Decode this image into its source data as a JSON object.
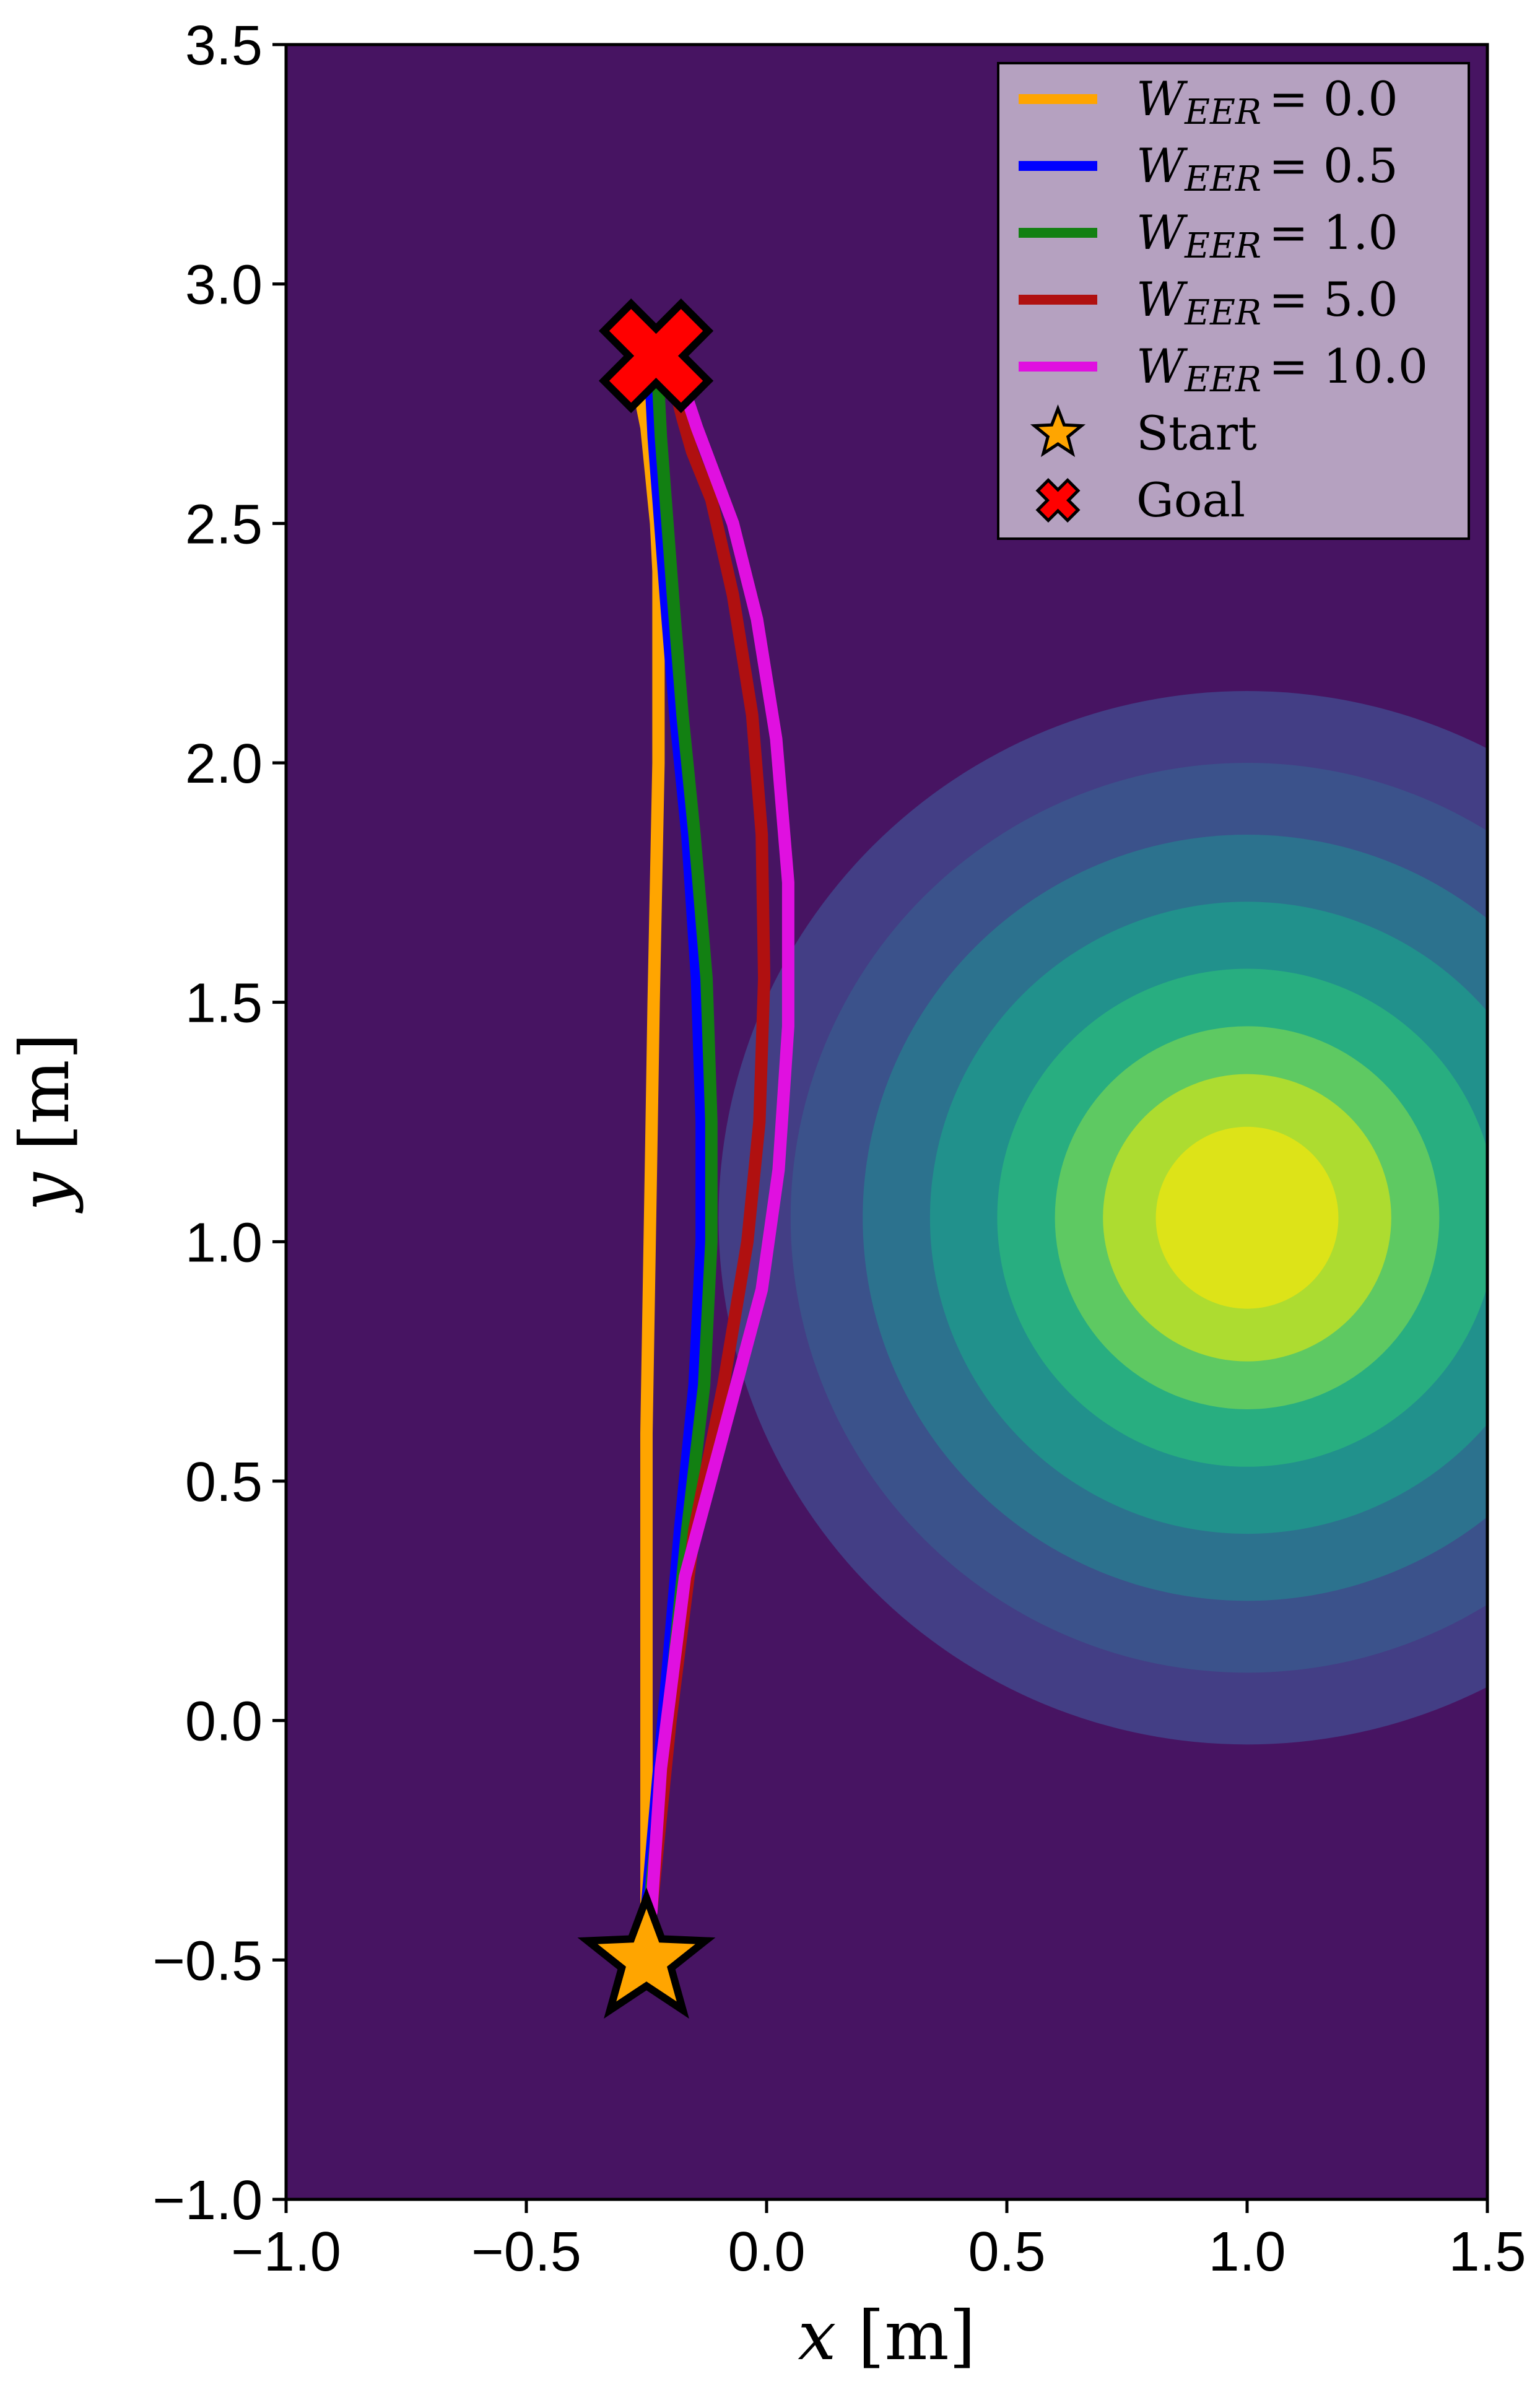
{
  "chart_data": {
    "type": "line",
    "xlabel": {
      "var": "x",
      "unit": "[m]"
    },
    "ylabel": {
      "var": "y",
      "unit": "[m]"
    },
    "xlim": [
      -1.0,
      1.5
    ],
    "ylim": [
      -1.0,
      3.5
    ],
    "xticks": [
      -1.0,
      -0.5,
      0.0,
      0.5,
      1.0,
      1.5
    ],
    "xtick_labels": [
      "−1.0",
      "−0.5",
      "0.0",
      "0.5",
      "1.0",
      "1.5"
    ],
    "yticks": [
      -1.0,
      -0.5,
      0.0,
      0.5,
      1.0,
      1.5,
      2.0,
      2.5,
      3.0,
      3.5
    ],
    "ytick_labels": [
      "−1.0",
      "−0.5",
      "0.0",
      "0.5",
      "1.0",
      "1.5",
      "2.0",
      "2.5",
      "3.0",
      "3.5"
    ],
    "grid": false,
    "legend_position": "top-right",
    "background": {
      "type": "filled-contour",
      "center": [
        1.0,
        1.05
      ],
      "levels": [
        {
          "radius": 1.1,
          "color": "#433e85"
        },
        {
          "radius": 0.95,
          "color": "#3b528b"
        },
        {
          "radius": 0.8,
          "color": "#2c728e"
        },
        {
          "radius": 0.66,
          "color": "#21918c"
        },
        {
          "radius": 0.52,
          "color": "#28ae80"
        },
        {
          "radius": 0.4,
          "color": "#5ec962"
        },
        {
          "radius": 0.3,
          "color": "#addc30"
        },
        {
          "radius": 0.19,
          "color": "#dde318"
        }
      ],
      "base_color": "#471462"
    },
    "series": [
      {
        "name": "W_EER = 0.0",
        "name_var": "W",
        "name_sub": "EER",
        "name_value": "= 0.0",
        "color": "#ffa500",
        "x": [
          -0.25,
          -0.25,
          -0.25,
          -0.25,
          -0.245,
          -0.24,
          -0.235,
          -0.23,
          -0.225,
          -0.225,
          -0.225,
          -0.23,
          -0.235,
          -0.24,
          -0.245,
          -0.25,
          -0.26
        ],
        "y": [
          -0.4,
          0.0,
          0.3,
          0.6,
          0.9,
          1.2,
          1.5,
          1.75,
          2.0,
          2.2,
          2.4,
          2.5,
          2.55,
          2.6,
          2.65,
          2.7,
          2.75
        ]
      },
      {
        "name": "W_EER = 0.5",
        "name_var": "W",
        "name_sub": "EER",
        "name_value": "= 0.5",
        "color": "#0000ff",
        "x": [
          -0.25,
          -0.215,
          -0.18,
          -0.15,
          -0.135,
          -0.135,
          -0.145,
          -0.165,
          -0.19,
          -0.21,
          -0.225,
          -0.235,
          -0.24
        ],
        "y": [
          -0.4,
          0.0,
          0.4,
          0.7,
          1.0,
          1.25,
          1.55,
          1.85,
          2.1,
          2.35,
          2.55,
          2.68,
          2.78
        ]
      },
      {
        "name": "W_EER = 1.0",
        "name_var": "W",
        "name_sub": "EER",
        "name_value": "= 1.0",
        "color": "#128012",
        "x": [
          -0.245,
          -0.205,
          -0.165,
          -0.13,
          -0.115,
          -0.115,
          -0.125,
          -0.15,
          -0.175,
          -0.195,
          -0.21,
          -0.22,
          -0.225
        ],
        "y": [
          -0.4,
          0.0,
          0.4,
          0.7,
          1.0,
          1.25,
          1.55,
          1.85,
          2.1,
          2.35,
          2.55,
          2.68,
          2.78
        ]
      },
      {
        "name": "W_EER = 5.0",
        "name_var": "W",
        "name_sub": "EER",
        "name_value": "= 5.0",
        "color": "#b01010",
        "x": [
          -0.24,
          -0.2,
          -0.15,
          -0.09,
          -0.04,
          -0.015,
          -0.005,
          -0.01,
          -0.03,
          -0.07,
          -0.115,
          -0.155,
          -0.175,
          -0.19
        ],
        "y": [
          -0.4,
          0.0,
          0.4,
          0.7,
          1.0,
          1.25,
          1.55,
          1.85,
          2.1,
          2.35,
          2.55,
          2.65,
          2.72,
          2.78
        ]
      },
      {
        "name": "W_EER = 10.0",
        "name_var": "W",
        "name_sub": "EER",
        "name_value": "= 10.0",
        "color": "#e010e0",
        "x": [
          -0.24,
          -0.22,
          -0.17,
          -0.09,
          -0.01,
          0.025,
          0.045,
          0.045,
          0.02,
          -0.02,
          -0.07,
          -0.115,
          -0.145,
          -0.165
        ],
        "y": [
          -0.4,
          -0.1,
          0.3,
          0.6,
          0.9,
          1.15,
          1.45,
          1.75,
          2.05,
          2.3,
          2.5,
          2.62,
          2.7,
          2.76
        ]
      }
    ],
    "markers": [
      {
        "name": "Start",
        "shape": "star",
        "color": "#ffa500",
        "x": -0.25,
        "y": -0.5
      },
      {
        "name": "Goal",
        "shape": "x",
        "color": "#ff0000",
        "x": -0.23,
        "y": 2.85
      }
    ]
  }
}
